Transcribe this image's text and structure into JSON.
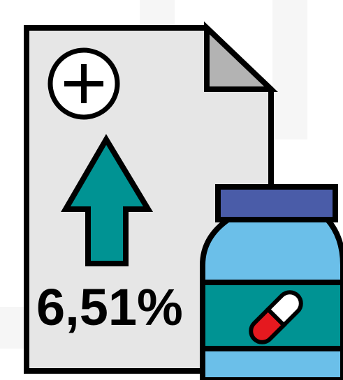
{
  "figure": {
    "label": "6,51%"
  }
}
